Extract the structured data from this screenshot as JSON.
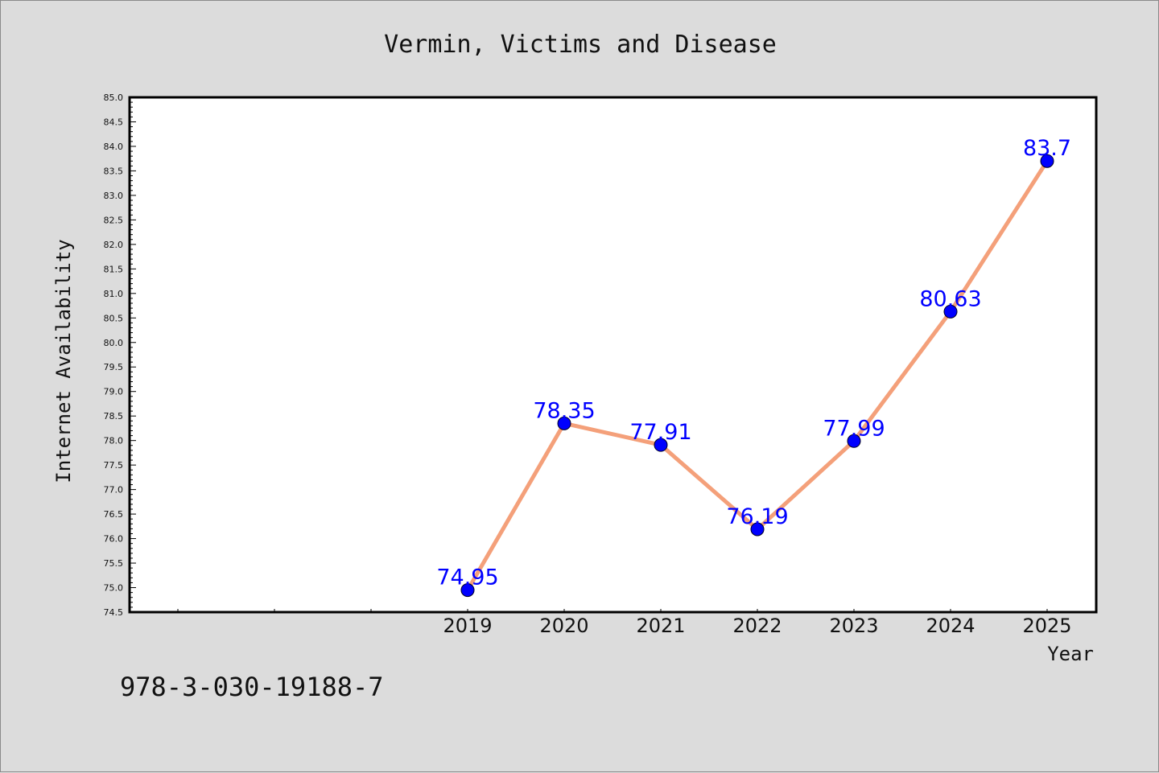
{
  "chart_data": {
    "type": "line",
    "title": "Vermin, Victims and Disease",
    "xlabel": "Year",
    "ylabel": "Internet Availability",
    "x": [
      "2019",
      "2020",
      "2021",
      "2022",
      "2023",
      "2024",
      "2025"
    ],
    "values": [
      74.95,
      78.35,
      77.91,
      76.19,
      77.99,
      80.63,
      83.7
    ],
    "data_labels": [
      "74.95",
      "78.35",
      "77.91",
      "76.19",
      "77.99",
      "80.63",
      "83.7"
    ],
    "ylim": [
      74.5,
      85.0
    ],
    "yticks": [
      "74.5",
      "75.0",
      "75.5",
      "76.0",
      "76.5",
      "77.0",
      "77.5",
      "78.0",
      "78.5",
      "79.0",
      "79.5",
      "80.0",
      "80.5",
      "81.0",
      "81.5",
      "82.0",
      "82.5",
      "83.0",
      "83.5",
      "84.0",
      "84.5",
      "85.0"
    ],
    "line_color": "#f4a07a",
    "marker_color": "#0000ff",
    "label_color": "#0000ff",
    "grid": false,
    "legend": "none"
  },
  "footer": {
    "isbn": "978-3-030-19188-7"
  }
}
